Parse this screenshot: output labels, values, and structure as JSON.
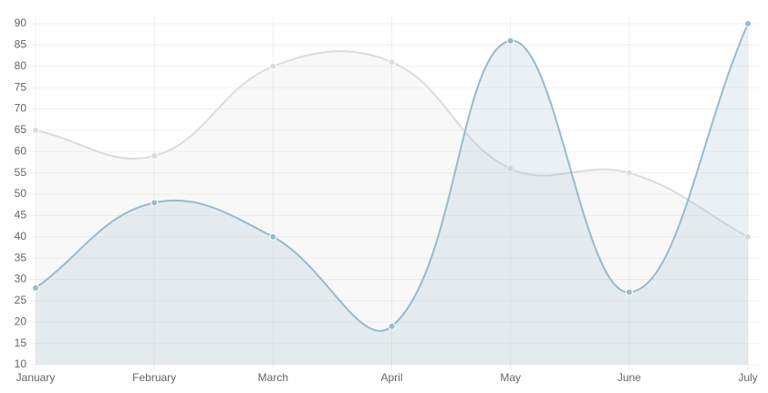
{
  "chart_data": {
    "type": "line",
    "categories": [
      "January",
      "February",
      "March",
      "April",
      "May",
      "June",
      "July"
    ],
    "series": [
      {
        "color": "rgba(220,220,220,1)",
        "fill": "rgba(220,220,220,0.2)",
        "values": [
          65,
          59,
          80,
          81,
          56,
          55,
          40
        ]
      },
      {
        "color": "rgba(151,187,205,1)",
        "fill": "rgba(151,187,205,0.2)",
        "values": [
          28,
          48,
          40,
          19,
          86,
          27,
          90
        ]
      }
    ],
    "ylim": [
      10,
      90
    ],
    "yticks": [
      10,
      15,
      20,
      25,
      30,
      35,
      40,
      45,
      50,
      55,
      60,
      65,
      70,
      75,
      80,
      85,
      90
    ],
    "grid": true,
    "smooth": true
  }
}
